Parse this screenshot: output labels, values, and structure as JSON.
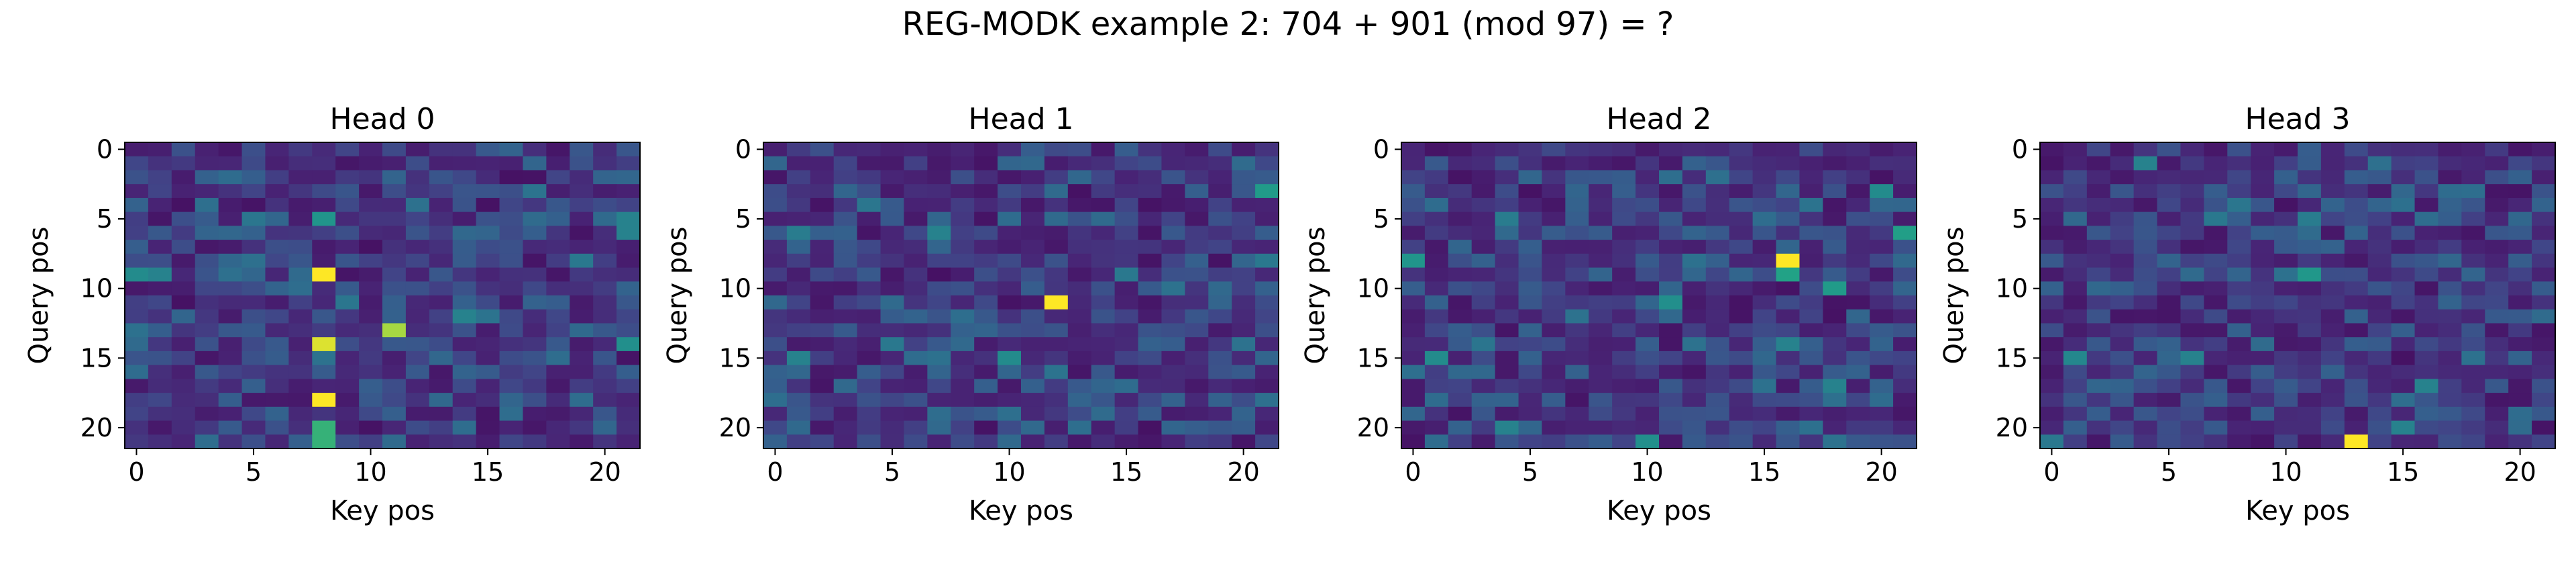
{
  "chart_data": {
    "title": "REG-MODK example 2: 704 + 901 (mod 97) = ?",
    "type": "heatmap",
    "n_query": 22,
    "n_key": 22,
    "colormap": "viridis",
    "panels": [
      {
        "title": "Head 0",
        "xlabel": "Key pos",
        "ylabel": "Query pos",
        "xticks": [
          0,
          5,
          10,
          15,
          20
        ],
        "yticks": [
          0,
          5,
          10,
          15,
          20
        ],
        "seed": 11,
        "highlights": [
          {
            "q": 9,
            "k": 8,
            "v": 1.0
          },
          {
            "q": 14,
            "k": 8,
            "v": 0.97
          },
          {
            "q": 18,
            "k": 8,
            "v": 1.0
          },
          {
            "q": 13,
            "k": 11,
            "v": 0.92
          },
          {
            "q": 20,
            "k": 8,
            "v": 0.78
          },
          {
            "q": 21,
            "k": 8,
            "v": 0.78
          },
          {
            "q": 9,
            "k": 0,
            "v": 0.6
          },
          {
            "q": 9,
            "k": 1,
            "v": 0.55
          },
          {
            "q": 5,
            "k": 8,
            "v": 0.65
          },
          {
            "q": 5,
            "k": 21,
            "v": 0.55
          },
          {
            "q": 6,
            "k": 21,
            "v": 0.55
          },
          {
            "q": 14,
            "k": 21,
            "v": 0.62
          },
          {
            "q": 12,
            "k": 14,
            "v": 0.55
          },
          {
            "q": 8,
            "k": 19,
            "v": 0.5
          }
        ]
      },
      {
        "title": "Head 1",
        "xlabel": "Key pos",
        "ylabel": "Query pos",
        "xticks": [
          0,
          5,
          10,
          15,
          20
        ],
        "yticks": [
          0,
          5,
          10,
          15,
          20
        ],
        "seed": 23,
        "highlights": [
          {
            "q": 11,
            "k": 12,
            "v": 1.0
          },
          {
            "q": 3,
            "k": 21,
            "v": 0.68
          },
          {
            "q": 15,
            "k": 10,
            "v": 0.6
          },
          {
            "q": 6,
            "k": 7,
            "v": 0.55
          },
          {
            "q": 15,
            "k": 1,
            "v": 0.55
          },
          {
            "q": 14,
            "k": 5,
            "v": 0.5
          },
          {
            "q": 6,
            "k": 1,
            "v": 0.52
          },
          {
            "q": 9,
            "k": 15,
            "v": 0.5
          },
          {
            "q": 8,
            "k": 21,
            "v": 0.5
          }
        ]
      },
      {
        "title": "Head 2",
        "xlabel": "Key pos",
        "ylabel": "Query pos",
        "xticks": [
          0,
          5,
          10,
          15,
          20
        ],
        "yticks": [
          0,
          5,
          10,
          15,
          20
        ],
        "seed": 37,
        "highlights": [
          {
            "q": 8,
            "k": 16,
            "v": 1.0
          },
          {
            "q": 9,
            "k": 16,
            "v": 0.72
          },
          {
            "q": 6,
            "k": 21,
            "v": 0.7
          },
          {
            "q": 8,
            "k": 0,
            "v": 0.65
          },
          {
            "q": 10,
            "k": 18,
            "v": 0.68
          },
          {
            "q": 11,
            "k": 11,
            "v": 0.62
          },
          {
            "q": 15,
            "k": 1,
            "v": 0.6
          },
          {
            "q": 14,
            "k": 16,
            "v": 0.55
          },
          {
            "q": 21,
            "k": 10,
            "v": 0.62
          },
          {
            "q": 3,
            "k": 20,
            "v": 0.6
          },
          {
            "q": 5,
            "k": 4,
            "v": 0.52
          },
          {
            "q": 20,
            "k": 4,
            "v": 0.55
          },
          {
            "q": 17,
            "k": 18,
            "v": 0.55
          }
        ]
      },
      {
        "title": "Head 3",
        "xlabel": "Key pos",
        "ylabel": "Query pos",
        "xticks": [
          0,
          5,
          10,
          15,
          20
        ],
        "yticks": [
          0,
          5,
          10,
          15,
          20
        ],
        "seed": 53,
        "highlights": [
          {
            "q": 21,
            "k": 13,
            "v": 1.0
          },
          {
            "q": 9,
            "k": 11,
            "v": 0.66
          },
          {
            "q": 15,
            "k": 1,
            "v": 0.58
          },
          {
            "q": 15,
            "k": 6,
            "v": 0.55
          },
          {
            "q": 5,
            "k": 11,
            "v": 0.52
          },
          {
            "q": 1,
            "k": 4,
            "v": 0.55
          },
          {
            "q": 17,
            "k": 16,
            "v": 0.55
          },
          {
            "q": 20,
            "k": 15,
            "v": 0.55
          },
          {
            "q": 21,
            "k": 0,
            "v": 0.5
          },
          {
            "q": 5,
            "k": 7,
            "v": 0.5
          }
        ]
      }
    ]
  }
}
